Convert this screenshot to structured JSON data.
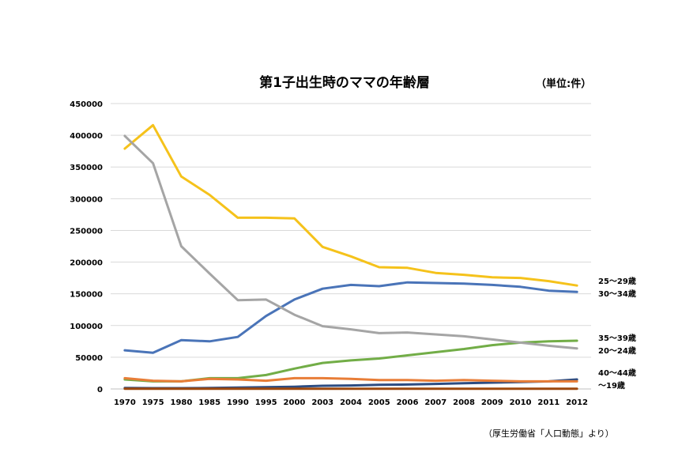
{
  "chart_data": {
    "type": "line",
    "title": "第1子出生時のママの年齢層",
    "unit": "（単位:件）",
    "source": "（厚生労働省「人口動態」より）",
    "categories": [
      "1970",
      "1975",
      "1980",
      "1985",
      "1990",
      "1995",
      "2000",
      "2003",
      "2004",
      "2005",
      "2006",
      "2007",
      "2008",
      "2009",
      "2010",
      "2011",
      "2012"
    ],
    "ylim": [
      0,
      450000
    ],
    "yticks": [
      "0",
      "50000",
      "100000",
      "150000",
      "200000",
      "250000",
      "300000",
      "350000",
      "400000",
      "450000"
    ],
    "grid": true,
    "series": [
      {
        "name": "25～29歳",
        "color": "#f5c21b",
        "values": [
          379000,
          416000,
          335000,
          306000,
          270000,
          270000,
          269000,
          224000,
          209000,
          192000,
          191000,
          183000,
          180000,
          176000,
          175000,
          170000,
          163000
        ]
      },
      {
        "name": "30～34歳",
        "color": "#4a74b8",
        "values": [
          61000,
          57000,
          77000,
          75000,
          82000,
          115000,
          141000,
          158000,
          164000,
          162000,
          168000,
          167000,
          166000,
          164000,
          161000,
          155000,
          153000
        ]
      },
      {
        "name": "35～39歳",
        "color": "#72ad47",
        "values": [
          15000,
          12000,
          12000,
          17000,
          17000,
          22000,
          32000,
          41000,
          45000,
          48000,
          53000,
          58000,
          63000,
          69000,
          73000,
          75000,
          76000
        ]
      },
      {
        "name": "20～24歳",
        "color": "#a5a5a5",
        "values": [
          399000,
          356000,
          225000,
          182000,
          140000,
          141000,
          117000,
          99000,
          94000,
          88000,
          89000,
          86000,
          83000,
          78000,
          73000,
          68000,
          64000
        ]
      },
      {
        "name": "40～44歳",
        "color": "#2c4c82",
        "values": [
          1500,
          1200,
          1200,
          1500,
          2200,
          2800,
          3500,
          5000,
          5500,
          6500,
          7000,
          8000,
          9000,
          10000,
          11000,
          12000,
          15000
        ]
      },
      {
        "name": "～19歳",
        "color": "#e87d37",
        "values": [
          17000,
          13000,
          12000,
          16000,
          15000,
          13000,
          17000,
          17000,
          16000,
          14000,
          14000,
          13000,
          14000,
          13000,
          12000,
          12000,
          12000
        ]
      },
      {
        "name": "",
        "color": "#9e480e",
        "values": [
          300,
          200,
          200,
          200,
          200,
          200,
          200,
          200,
          200,
          200,
          200,
          200,
          200,
          200,
          200,
          200,
          200
        ]
      }
    ],
    "series_labels": [
      {
        "text": "25～29歳"
      },
      {
        "text": "30～34歳"
      },
      {
        "text": "35～39歳"
      },
      {
        "text": "20～24歳"
      },
      {
        "text": "40～44歳"
      },
      {
        "text": "～19歳"
      }
    ]
  }
}
